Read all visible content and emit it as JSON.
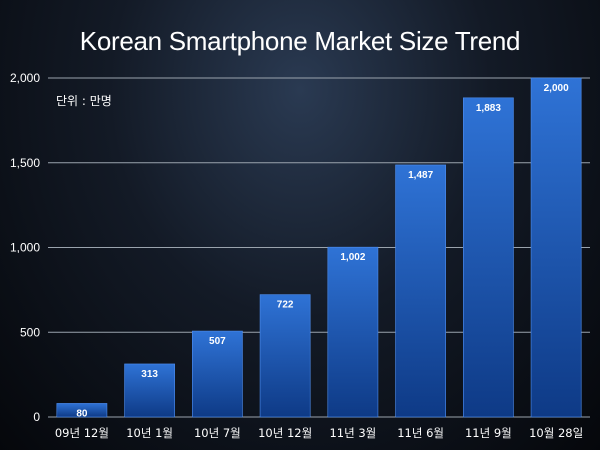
{
  "chart_data": {
    "type": "bar",
    "title": "Korean Smartphone Market Size Trend",
    "unit_note": "단위 : 만명",
    "categories": [
      "09년 12월",
      "10년 1월",
      "10년 7월",
      "10년 12월",
      "11년 3월",
      "11년 6월",
      "11년 9월",
      "10월 28일"
    ],
    "values": [
      80,
      313,
      507,
      722,
      1002,
      1487,
      1883,
      2000
    ],
    "value_labels": [
      "80",
      "313",
      "507",
      "722",
      "1,002",
      "1,487",
      "1,883",
      "2,000"
    ],
    "yticks": [
      0,
      500,
      1000,
      1500,
      2000
    ],
    "ytick_labels": [
      "0",
      "500",
      "1,000",
      "1,500",
      "2,000"
    ],
    "ylim": [
      0,
      2000
    ],
    "xlabel": "",
    "ylabel": "",
    "grid": true,
    "legend": "none",
    "colors": {
      "bar_top": "#2f73d6",
      "bar_bottom": "#0e3a86",
      "grid": "#9aa3ad",
      "text": "#ffffff"
    }
  }
}
